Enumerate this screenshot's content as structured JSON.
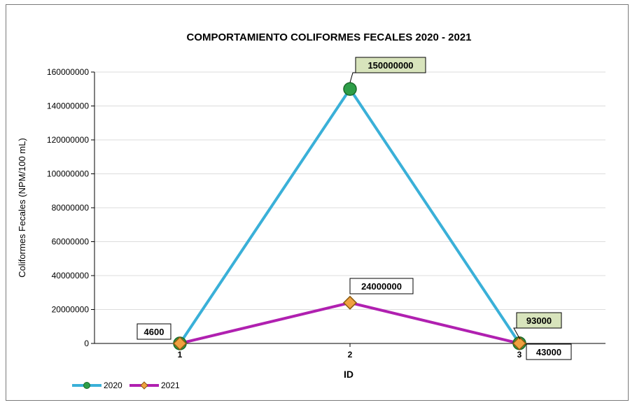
{
  "chart_data": {
    "type": "line",
    "title": "COMPORTAMIENTO COLIFORMES FECALES 2020 -  2021",
    "xlabel": "ID",
    "ylabel": "Coliformes Fecales (NPM/100 mL)",
    "categories": [
      "1",
      "2",
      "3"
    ],
    "ylim": [
      0,
      160000000
    ],
    "yticks": [
      0,
      20000000,
      40000000,
      60000000,
      80000000,
      100000000,
      120000000,
      140000000,
      160000000
    ],
    "grid": true,
    "legend_position": "bottom-left",
    "series": [
      {
        "name": "2020",
        "values": [
          4600,
          150000000,
          93000
        ],
        "color": "#3ab0d8",
        "marker_color": "#2e9e48",
        "marker": "circle",
        "labels": [
          "",
          "150000000",
          "93000"
        ],
        "label_style": "callout-green"
      },
      {
        "name": "2021",
        "values": [
          4600,
          24000000,
          43000
        ],
        "color": "#b020b0",
        "marker_color": "#f0a040",
        "marker": "diamond",
        "labels": [
          "4600",
          "24000000",
          "43000"
        ],
        "label_style": "box-white"
      }
    ]
  }
}
